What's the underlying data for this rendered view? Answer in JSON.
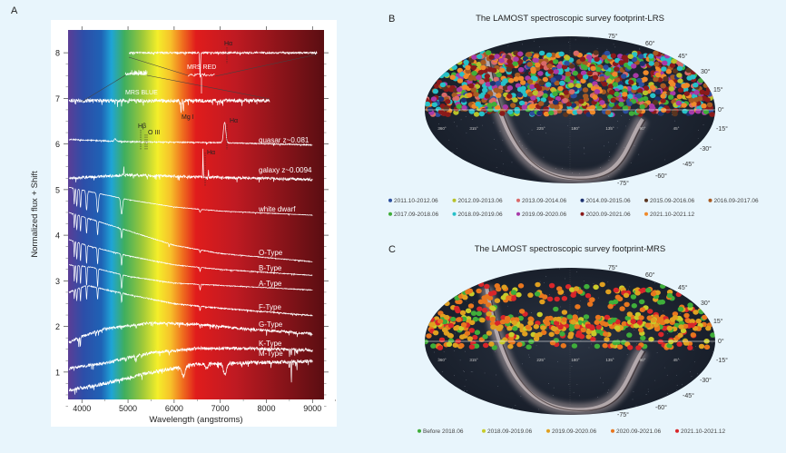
{
  "panels": {
    "a": "A",
    "b": "B",
    "c": "C"
  },
  "chart_data": [
    {
      "type": "line",
      "panel": "A",
      "xlabel": "Wavelength (angstroms)",
      "ylabel": "Normalized flux + Shift",
      "xlim": [
        3700,
        9250
      ],
      "ylim": [
        0.4,
        8.5
      ],
      "xticks": [
        "4000",
        "5000",
        "6000",
        "7000",
        "8000",
        "9000"
      ],
      "xtick_values": [
        4000,
        5000,
        6000,
        7000,
        8000,
        9000
      ],
      "yticks": [
        "1",
        "2",
        "3",
        "4",
        "5",
        "6",
        "7",
        "8"
      ],
      "ytick_values": [
        1,
        2,
        3,
        4,
        5,
        6,
        7,
        8
      ],
      "background": "visible spectrum gradient",
      "series": [
        {
          "name": "MRS RED",
          "noise": 0.02,
          "points": [
            [
              5020,
              8.0
            ],
            [
              9100,
              8.0
            ]
          ],
          "lines": [
            [
              6563,
              -0.55,
              12
            ]
          ]
        },
        {
          "name": "MRS BLUE",
          "noise": 0.04,
          "points": [
            [
              3720,
              6.95
            ],
            [
              8070,
              6.95
            ]
          ],
          "lines": [
            [
              6150,
              -0.25,
              10
            ],
            [
              6200,
              -0.25,
              10
            ]
          ]
        },
        {
          "name": "quasar z~0.081",
          "noise": 0.012,
          "points": [
            [
              3720,
              6.1
            ],
            [
              5000,
              6.05
            ],
            [
              7000,
              6.03
            ],
            [
              9000,
              5.98
            ]
          ],
          "lines": [
            [
              7095,
              0.45,
              35
            ],
            [
              4720,
              0.05,
              25
            ]
          ]
        },
        {
          "name": "galaxy z~0.0094",
          "noise": 0.03,
          "points": [
            [
              3720,
              5.25
            ],
            [
              5000,
              5.32
            ],
            [
              7000,
              5.27
            ],
            [
              9000,
              5.22
            ]
          ],
          "lines": [
            [
              6625,
              0.6,
              8
            ],
            [
              6745,
              0.15,
              6
            ],
            [
              4908,
              0.18,
              6
            ]
          ]
        },
        {
          "name": "white dwarf",
          "noise": 0.006,
          "points": [
            [
              3720,
              5.05
            ],
            [
              4200,
              4.95
            ],
            [
              5000,
              4.78
            ],
            [
              6000,
              4.62
            ],
            [
              7000,
              4.53
            ],
            [
              9000,
              4.44
            ]
          ],
          "lines": [
            [
              3835,
              -0.35,
              12
            ],
            [
              3889,
              -0.38,
              14
            ],
            [
              3970,
              -0.4,
              16
            ],
            [
              4102,
              -0.42,
              20
            ],
            [
              4341,
              -0.42,
              24
            ],
            [
              4861,
              -0.35,
              26
            ],
            [
              6563,
              -0.06,
              20
            ]
          ]
        },
        {
          "name": "O-Type",
          "noise": 0.008,
          "points": [
            [
              3720,
              4.5
            ],
            [
              4200,
              4.35
            ],
            [
              5000,
              4.1
            ],
            [
              6000,
              3.78
            ],
            [
              7000,
              3.6
            ],
            [
              9000,
              3.42
            ]
          ],
          "lines": [
            [
              3835,
              -0.3,
              10
            ],
            [
              3889,
              -0.32,
              12
            ],
            [
              3970,
              -0.35,
              12
            ],
            [
              4102,
              -0.35,
              14
            ],
            [
              4341,
              -0.3,
              14
            ],
            [
              4861,
              -0.22,
              14
            ],
            [
              5890,
              -0.08,
              8
            ],
            [
              6563,
              -0.06,
              12
            ]
          ]
        },
        {
          "name": "B-Type",
          "noise": 0.008,
          "points": [
            [
              3720,
              3.9
            ],
            [
              4200,
              3.75
            ],
            [
              5000,
              3.55
            ],
            [
              6000,
              3.35
            ],
            [
              7000,
              3.25
            ],
            [
              9000,
              3.12
            ]
          ],
          "lines": [
            [
              3835,
              -0.35,
              10
            ],
            [
              3889,
              -0.38,
              12
            ],
            [
              3970,
              -0.4,
              12
            ],
            [
              4102,
              -0.4,
              14
            ],
            [
              4341,
              -0.35,
              14
            ],
            [
              4861,
              -0.25,
              14
            ],
            [
              6563,
              -0.08,
              12
            ]
          ]
        },
        {
          "name": "A-Type",
          "noise": 0.008,
          "points": [
            [
              3720,
              3.35
            ],
            [
              4200,
              3.3
            ],
            [
              5000,
              3.1
            ],
            [
              6000,
              2.95
            ],
            [
              7000,
              2.9
            ],
            [
              9000,
              2.8
            ]
          ],
          "lines": [
            [
              3835,
              -0.35,
              10
            ],
            [
              3889,
              -0.38,
              12
            ],
            [
              3970,
              -0.4,
              12
            ],
            [
              4102,
              -0.42,
              14
            ],
            [
              4341,
              -0.4,
              14
            ],
            [
              4861,
              -0.3,
              16
            ],
            [
              6563,
              -0.12,
              14
            ]
          ]
        },
        {
          "name": "F-Type",
          "noise": 0.012,
          "points": [
            [
              3720,
              2.75
            ],
            [
              4100,
              2.9
            ],
            [
              5000,
              2.7
            ],
            [
              6000,
              2.5
            ],
            [
              7000,
              2.4
            ],
            [
              9000,
              2.24
            ]
          ],
          "lines": [
            [
              3835,
              -0.2,
              8
            ],
            [
              3889,
              -0.25,
              10
            ],
            [
              3970,
              -0.3,
              10
            ],
            [
              4102,
              -0.3,
              12
            ],
            [
              4341,
              -0.25,
              12
            ],
            [
              4861,
              -0.2,
              12
            ],
            [
              6563,
              -0.1,
              12
            ]
          ]
        },
        {
          "name": "G-Type",
          "noise": 0.03,
          "points": [
            [
              3720,
              1.65
            ],
            [
              4000,
              1.78
            ],
            [
              4500,
              1.95
            ],
            [
              5500,
              2.08
            ],
            [
              6500,
              2.05
            ],
            [
              7500,
              1.95
            ],
            [
              9000,
              1.84
            ]
          ],
          "lines": [
            [
              3933,
              -0.2,
              8
            ],
            [
              3968,
              -0.2,
              8
            ],
            [
              4300,
              -0.1,
              8
            ],
            [
              5175,
              -0.08,
              10
            ],
            [
              6563,
              -0.06,
              8
            ]
          ]
        },
        {
          "name": "K-Type",
          "noise": 0.035,
          "points": [
            [
              3720,
              1.08
            ],
            [
              4500,
              1.2
            ],
            [
              5500,
              1.42
            ],
            [
              6500,
              1.52
            ],
            [
              7500,
              1.52
            ],
            [
              9000,
              1.48
            ]
          ],
          "lines": [
            [
              5175,
              -0.12,
              12
            ],
            [
              5890,
              -0.08,
              8
            ],
            [
              8500,
              -0.08,
              6
            ],
            [
              8542,
              -0.12,
              6
            ],
            [
              8662,
              -0.1,
              6
            ]
          ]
        },
        {
          "name": "M-Type",
          "noise": 0.04,
          "points": [
            [
              3720,
              0.6
            ],
            [
              4500,
              0.75
            ],
            [
              5500,
              1.0
            ],
            [
              6000,
              1.08
            ],
            [
              6500,
              1.18
            ],
            [
              7500,
              1.2
            ],
            [
              9000,
              1.24
            ]
          ],
          "lines": [
            [
              6200,
              -0.22,
              45
            ],
            [
              6700,
              -0.12,
              40
            ],
            [
              7100,
              -0.25,
              50
            ],
            [
              8500,
              -0.15,
              6
            ],
            [
              8542,
              -0.5,
              6
            ],
            [
              8662,
              -0.2,
              6
            ]
          ]
        }
      ],
      "annotations": {
        "ha": "Hα",
        "hb": "Hβ",
        "oiii": "O III",
        "mgi": "Mg I",
        "mrs_red": "MRS RED",
        "mrs_blue": "MRS BLUE"
      }
    },
    {
      "type": "scatter",
      "panel": "B",
      "title": "The LAMOST spectroscopic survey footprint-LRS",
      "projection": "all-sky ellipse",
      "lat_labels": [
        "75°",
        "60°",
        "45°",
        "30°",
        "15°",
        "0°",
        "-15°",
        "-30°",
        "-45°",
        "-60°",
        "-75°"
      ],
      "lon_labels": [
        "360°",
        "315°",
        "225°",
        "180°",
        "135°",
        "90°",
        "45°"
      ],
      "legend": [
        {
          "label": "2011.10-2012.06",
          "color": "#2c4f9e"
        },
        {
          "label": "2012.09-2013.06",
          "color": "#b8c22a"
        },
        {
          "label": "2013.09-2014.06",
          "color": "#d96a6a"
        },
        {
          "label": "2014.09-2015.06",
          "color": "#1d3270"
        },
        {
          "label": "2015.09-2016.06",
          "color": "#5a3520"
        },
        {
          "label": "2016.09-2017.06",
          "color": "#a85a22"
        },
        {
          "label": "2017.09-2018.06",
          "color": "#3fae3a"
        },
        {
          "label": "2018.09-2019.06",
          "color": "#27c0c8"
        },
        {
          "label": "2019.09-2020.06",
          "color": "#a83aa8"
        },
        {
          "label": "2020.09-2021.06",
          "color": "#8a1a1a"
        },
        {
          "label": "2021.10-2021.12",
          "color": "#f08a2a"
        }
      ],
      "legend_placement": "bottom"
    },
    {
      "type": "scatter",
      "panel": "C",
      "title": "The LAMOST spectroscopic survey footprint-MRS",
      "projection": "all-sky ellipse",
      "lat_labels": [
        "75°",
        "60°",
        "45°",
        "30°",
        "15°",
        "0°",
        "-15°",
        "-30°",
        "-45°",
        "-60°",
        "-75°"
      ],
      "lon_labels": [
        "360°",
        "315°",
        "225°",
        "180°",
        "135°",
        "90°",
        "45°"
      ],
      "legend": [
        {
          "label": "Before 2018.06",
          "color": "#3fae3a"
        },
        {
          "label": "2018.09-2019.06",
          "color": "#c8cc2a"
        },
        {
          "label": "2019.09-2020.06",
          "color": "#e0a020"
        },
        {
          "label": "2020.09-2021.06",
          "color": "#e8761e"
        },
        {
          "label": "2021.10-2021.12",
          "color": "#d8262a"
        }
      ],
      "legend_placement": "bottom"
    }
  ]
}
